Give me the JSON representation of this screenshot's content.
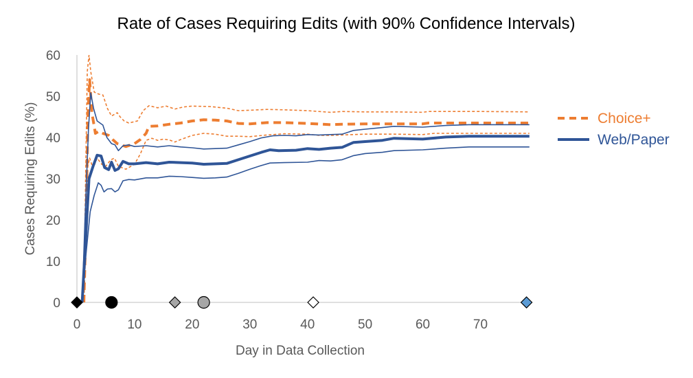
{
  "chart_data": {
    "type": "line",
    "title": "Rate of Cases Requiring Edits (with 90% Confidence Intervals)",
    "xlabel": "Day in Data Collection",
    "ylabel": "Cases Requiring Edits  (%)",
    "xlim": [
      0,
      79
    ],
    "ylim": [
      0,
      60
    ],
    "xticks": [
      0,
      10,
      20,
      30,
      40,
      50,
      60,
      70
    ],
    "yticks": [
      0,
      10,
      20,
      30,
      40,
      50,
      60
    ],
    "legend_position": "right",
    "series": [
      {
        "name": "Choice+",
        "role": "estimate",
        "color": "#ED7D31",
        "style": "dashed",
        "points": [
          [
            1.2,
            0
          ],
          [
            1.6,
            20
          ],
          [
            1.9,
            45
          ],
          [
            2.2,
            54
          ],
          [
            2.6,
            46
          ],
          [
            3.2,
            41
          ],
          [
            3.8,
            41.5
          ],
          [
            4.5,
            41
          ],
          [
            5.5,
            40.5
          ],
          [
            6.2,
            39.5
          ],
          [
            7,
            38.5
          ],
          [
            8.5,
            37.8
          ],
          [
            10,
            38.5
          ],
          [
            11,
            39.5
          ],
          [
            12,
            41
          ],
          [
            12.5,
            42.7
          ],
          [
            14,
            42.8
          ],
          [
            16,
            43.2
          ],
          [
            18,
            43.5
          ],
          [
            20,
            44
          ],
          [
            22,
            44.3
          ],
          [
            24,
            44.2
          ],
          [
            26,
            44
          ],
          [
            28,
            43.4
          ],
          [
            30,
            43.3
          ],
          [
            33,
            43.6
          ],
          [
            36,
            43.6
          ],
          [
            40,
            43.4
          ],
          [
            44,
            43.1
          ],
          [
            46,
            43.2
          ],
          [
            50,
            43.3
          ],
          [
            55,
            43.3
          ],
          [
            60,
            43.3
          ],
          [
            61,
            43.5
          ],
          [
            65,
            43.5
          ],
          [
            70,
            43.5
          ],
          [
            78.5,
            43.5
          ]
        ]
      },
      {
        "name": "Choice+ upper 90% CI",
        "role": "ci",
        "color": "#ED7D31",
        "style": "dashed",
        "points": [
          [
            1.2,
            0
          ],
          [
            1.5,
            30
          ],
          [
            1.8,
            56
          ],
          [
            2.1,
            60
          ],
          [
            2.4,
            56
          ],
          [
            3,
            51
          ],
          [
            3.8,
            50.5
          ],
          [
            4.5,
            50.3
          ],
          [
            5.3,
            47
          ],
          [
            6,
            45.2
          ],
          [
            7,
            46
          ],
          [
            7.5,
            45
          ],
          [
            8.2,
            44
          ],
          [
            9,
            43.5
          ],
          [
            10.5,
            44
          ],
          [
            11.5,
            46.5
          ],
          [
            12.5,
            47.7
          ],
          [
            14,
            47.2
          ],
          [
            15.5,
            47.6
          ],
          [
            17,
            46.9
          ],
          [
            18.5,
            47.4
          ],
          [
            20,
            47.6
          ],
          [
            23,
            47.5
          ],
          [
            26,
            47.1
          ],
          [
            28,
            46.5
          ],
          [
            30,
            46.6
          ],
          [
            33,
            46.8
          ],
          [
            36,
            46.7
          ],
          [
            40,
            46.5
          ],
          [
            44,
            46.1
          ],
          [
            46,
            46.3
          ],
          [
            50,
            46.2
          ],
          [
            55,
            46.2
          ],
          [
            60,
            46.1
          ],
          [
            61,
            46.3
          ],
          [
            70,
            46.3
          ],
          [
            78.5,
            46.2
          ]
        ]
      },
      {
        "name": "Choice+ lower 90% CI",
        "role": "ci",
        "color": "#ED7D31",
        "style": "dashed",
        "points": [
          [
            1.2,
            0
          ],
          [
            1.6,
            15
          ],
          [
            1.9,
            33
          ],
          [
            2.2,
            35
          ],
          [
            2.8,
            32.5
          ],
          [
            3.5,
            35
          ],
          [
            4.3,
            33.5
          ],
          [
            5,
            33
          ],
          [
            5.8,
            34.5
          ],
          [
            6.5,
            35
          ],
          [
            7.2,
            33
          ],
          [
            8.5,
            32.3
          ],
          [
            10,
            33.5
          ],
          [
            11,
            36
          ],
          [
            12,
            39.3
          ],
          [
            13,
            39.8
          ],
          [
            14,
            39.3
          ],
          [
            15,
            39.6
          ],
          [
            16,
            39.4
          ],
          [
            17,
            38.9
          ],
          [
            18,
            39.5
          ],
          [
            20,
            40.5
          ],
          [
            22,
            41
          ],
          [
            24,
            40.8
          ],
          [
            26,
            40.3
          ],
          [
            28,
            40.3
          ],
          [
            30,
            40.2
          ],
          [
            33,
            40.6
          ],
          [
            36,
            40.9
          ],
          [
            40,
            40.8
          ],
          [
            42,
            40.5
          ],
          [
            44,
            40.5
          ],
          [
            46,
            40.6
          ],
          [
            50,
            40.8
          ],
          [
            55,
            40.8
          ],
          [
            60,
            40.7
          ],
          [
            62,
            41
          ],
          [
            70,
            41
          ],
          [
            78.5,
            41
          ]
        ]
      },
      {
        "name": "Web/Paper",
        "role": "estimate",
        "color": "#2F5597",
        "style": "solid",
        "points": [
          [
            0.9,
            0
          ],
          [
            1.5,
            15
          ],
          [
            2.1,
            30
          ],
          [
            2.8,
            33
          ],
          [
            3.5,
            35.7
          ],
          [
            4.2,
            35.5
          ],
          [
            4.8,
            32.7
          ],
          [
            5.5,
            32.2
          ],
          [
            6,
            34
          ],
          [
            6.6,
            32
          ],
          [
            7.2,
            32.4
          ],
          [
            8,
            34.2
          ],
          [
            9,
            33.6
          ],
          [
            10,
            33.6
          ],
          [
            12,
            33.9
          ],
          [
            14,
            33.6
          ],
          [
            16,
            34
          ],
          [
            18,
            33.9
          ],
          [
            20,
            33.8
          ],
          [
            22,
            33.5
          ],
          [
            24,
            33.6
          ],
          [
            26,
            33.7
          ],
          [
            28,
            34.6
          ],
          [
            30,
            35.5
          ],
          [
            32,
            36.4
          ],
          [
            33.5,
            37
          ],
          [
            35,
            36.8
          ],
          [
            38,
            36.9
          ],
          [
            40,
            37.3
          ],
          [
            42,
            37.1
          ],
          [
            44,
            37.4
          ],
          [
            46,
            37.6
          ],
          [
            48,
            38.8
          ],
          [
            50,
            39
          ],
          [
            53,
            39.3
          ],
          [
            55,
            39.8
          ],
          [
            60,
            39.6
          ],
          [
            64,
            40.1
          ],
          [
            68,
            40.3
          ],
          [
            72,
            40.3
          ],
          [
            78.5,
            40.3
          ]
        ]
      },
      {
        "name": "Web/Paper upper 90% CI",
        "role": "ci",
        "color": "#2F5597",
        "style": "solid",
        "points": [
          [
            0.9,
            0
          ],
          [
            1.4,
            20
          ],
          [
            2,
            42
          ],
          [
            2.4,
            50.8
          ],
          [
            2.9,
            47
          ],
          [
            3.5,
            44
          ],
          [
            4.5,
            43
          ],
          [
            5.2,
            40
          ],
          [
            6,
            38.5
          ],
          [
            6.6,
            38.2
          ],
          [
            7.2,
            36.8
          ],
          [
            8,
            38
          ],
          [
            9,
            38.2
          ],
          [
            10,
            37.8
          ],
          [
            12,
            38
          ],
          [
            14,
            37.7
          ],
          [
            16,
            38
          ],
          [
            18,
            37.7
          ],
          [
            20,
            37.5
          ],
          [
            22,
            37.2
          ],
          [
            24,
            37.3
          ],
          [
            26,
            37.4
          ],
          [
            28,
            38.2
          ],
          [
            30,
            39
          ],
          [
            32,
            39.9
          ],
          [
            34,
            40.4
          ],
          [
            36,
            40.5
          ],
          [
            38,
            40.4
          ],
          [
            40,
            40.7
          ],
          [
            42,
            40.6
          ],
          [
            44,
            40.7
          ],
          [
            46,
            40.8
          ],
          [
            48,
            41.7
          ],
          [
            50,
            42
          ],
          [
            53,
            42.4
          ],
          [
            55,
            42.7
          ],
          [
            60,
            42.5
          ],
          [
            64,
            42.9
          ],
          [
            68,
            43.1
          ],
          [
            72,
            43.1
          ],
          [
            78.5,
            43.1
          ]
        ]
      },
      {
        "name": "Web/Paper lower 90% CI",
        "role": "ci",
        "color": "#2F5597",
        "style": "solid",
        "points": [
          [
            0.9,
            0
          ],
          [
            1.6,
            12
          ],
          [
            2.3,
            22
          ],
          [
            3,
            26
          ],
          [
            3.7,
            29
          ],
          [
            4.2,
            28.4
          ],
          [
            4.7,
            26.8
          ],
          [
            5.3,
            27.5
          ],
          [
            6,
            27.6
          ],
          [
            6.6,
            26.8
          ],
          [
            7.2,
            27.3
          ],
          [
            8,
            29.5
          ],
          [
            9,
            29.8
          ],
          [
            10,
            29.7
          ],
          [
            12,
            30.2
          ],
          [
            14,
            30.2
          ],
          [
            16,
            30.6
          ],
          [
            18,
            30.5
          ],
          [
            20,
            30.3
          ],
          [
            22,
            30.1
          ],
          [
            24,
            30.2
          ],
          [
            26,
            30.4
          ],
          [
            28,
            31.3
          ],
          [
            30,
            32.3
          ],
          [
            32,
            33.2
          ],
          [
            33.5,
            33.8
          ],
          [
            36,
            33.9
          ],
          [
            40,
            34
          ],
          [
            42,
            34.4
          ],
          [
            44,
            34.3
          ],
          [
            46,
            34.6
          ],
          [
            48,
            35.6
          ],
          [
            50,
            36.1
          ],
          [
            53,
            36.4
          ],
          [
            55,
            36.8
          ],
          [
            60,
            37
          ],
          [
            64,
            37.4
          ],
          [
            68,
            37.7
          ],
          [
            72,
            37.7
          ],
          [
            78.5,
            37.7
          ]
        ]
      }
    ],
    "markers": [
      {
        "x": 0,
        "y": 0,
        "shape": "diamond",
        "fill": "#000000"
      },
      {
        "x": 6,
        "y": 0,
        "shape": "circle",
        "fill": "#000000"
      },
      {
        "x": 17,
        "y": 0,
        "shape": "diamond",
        "fill": "#A6A6A6"
      },
      {
        "x": 22,
        "y": 0,
        "shape": "circle",
        "fill": "#A6A6A6"
      },
      {
        "x": 41,
        "y": 0,
        "shape": "diamond",
        "fill": "#FFFFFF"
      },
      {
        "x": 78,
        "y": 0,
        "shape": "diamond",
        "fill": "#5B9BD5"
      }
    ],
    "legend": [
      {
        "label": "Choice+",
        "color": "#ED7D31",
        "style": "dashed"
      },
      {
        "label": "Web/Paper",
        "color": "#2F5597",
        "style": "solid"
      }
    ]
  }
}
